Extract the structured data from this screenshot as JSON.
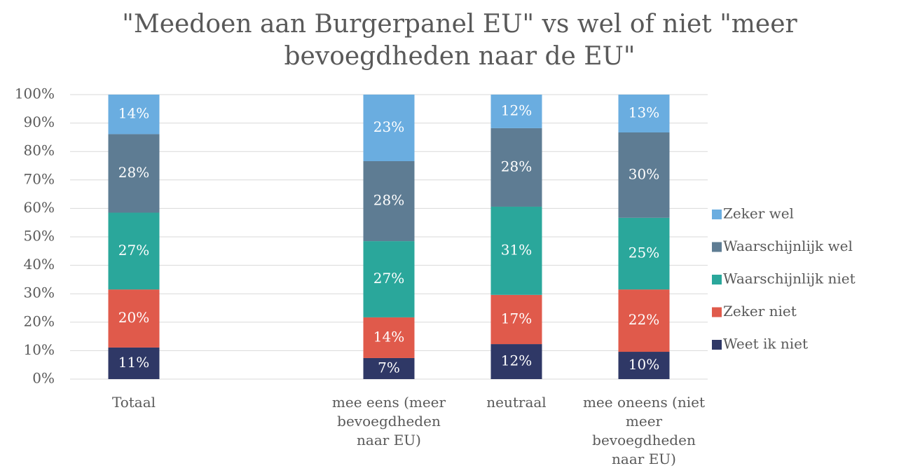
{
  "chart_data": {
    "type": "stacked_bar",
    "title": "\"Meedoen aan Burgerpanel EU\" vs wel of niet \"meer bevoegdheden naar de EU\"",
    "categories": [
      "Totaal",
      null,
      "mee eens (meer bevoegdheden naar EU)",
      "neutraal",
      "mee oneens (niet meer bevoegdheden naar EU)"
    ],
    "series": [
      {
        "name": "Weet ik niet",
        "color": "#2f3866",
        "values": [
          11.1,
          null,
          7.4,
          12.3,
          9.6
        ],
        "value_labels": [
          "11%",
          null,
          "7%",
          "12%",
          "10%"
        ]
      },
      {
        "name": "Zeker niet",
        "color": "#e05a4b",
        "values": [
          20.4,
          null,
          14.3,
          17.3,
          21.9
        ],
        "value_labels": [
          "20%",
          null,
          "14%",
          "17%",
          "22%"
        ]
      },
      {
        "name": "Waarschijnlijk niet",
        "color": "#2aa79b",
        "values": [
          27.0,
          null,
          26.8,
          31.0,
          25.2
        ],
        "value_labels": [
          "27%",
          null,
          "27%",
          "31%",
          "25%"
        ]
      },
      {
        "name": "Waarschijnlijk wel",
        "color": "#5e7c93",
        "values": [
          27.6,
          null,
          28.1,
          27.6,
          30.0
        ],
        "value_labels": [
          "28%",
          null,
          "28%",
          "28%",
          "30%"
        ]
      },
      {
        "name": "Zeker wel",
        "color": "#6aade0",
        "values": [
          13.9,
          null,
          23.4,
          11.8,
          13.3
        ],
        "value_labels": [
          "14%",
          null,
          "23%",
          "12%",
          "13%"
        ]
      }
    ],
    "ylim": [
      0,
      100
    ],
    "yticks": [
      {
        "value": 0,
        "label": "0%"
      },
      {
        "value": 10,
        "label": "10%"
      },
      {
        "value": 20,
        "label": "20%"
      },
      {
        "value": 30,
        "label": "30%"
      },
      {
        "value": 40,
        "label": "40%"
      },
      {
        "value": 50,
        "label": "50%"
      },
      {
        "value": 60,
        "label": "60%"
      },
      {
        "value": 70,
        "label": "70%"
      },
      {
        "value": 80,
        "label": "80%"
      },
      {
        "value": 90,
        "label": "90%"
      },
      {
        "value": 100,
        "label": "100%"
      }
    ],
    "grid": true,
    "legend": "right"
  }
}
